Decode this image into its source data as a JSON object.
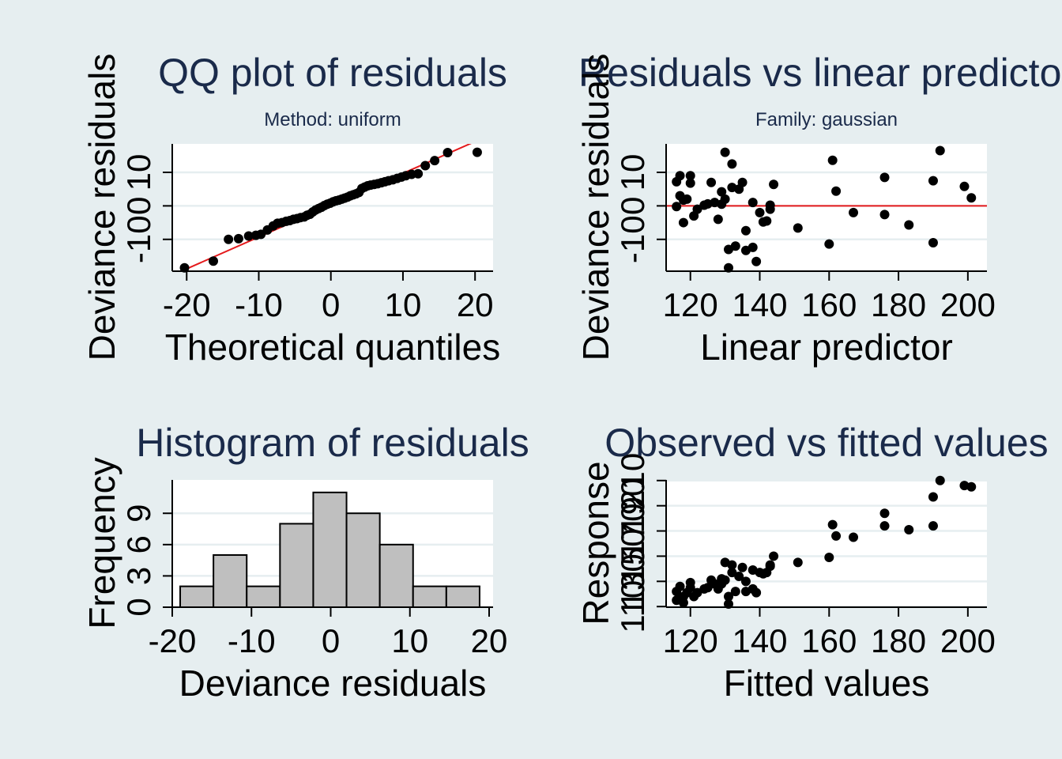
{
  "colors": {
    "background": "#e6eef0",
    "plot_bg": "#ffffff",
    "grid": "#e6eef0",
    "ref_line": "#e41a1c",
    "points": "#000000",
    "bars": "#bfbfbf",
    "title": "#1a2a4a"
  },
  "chart_data": [
    {
      "type": "scatter",
      "title": "QQ plot of residuals",
      "subtitle": "Method: uniform",
      "xlabel": "Theoretical quantiles",
      "ylabel": "Deviance residuals",
      "xlim": [
        -22,
        22.5
      ],
      "ylim": [
        -19.5,
        18.5
      ],
      "xticks": [
        -20,
        -10,
        0,
        10,
        20
      ],
      "yticks": [
        -10,
        0,
        10
      ],
      "xtick_labels": [
        "-20",
        "-10",
        "0",
        "10",
        "20"
      ],
      "ytick_labels": [
        "-10",
        "0",
        "10"
      ],
      "grid": true,
      "refline": {
        "slope": 0.95,
        "intercept": 0.2
      },
      "x": [
        -20.3,
        -16.3,
        -14.2,
        -12.8,
        -11.4,
        -10.4,
        -9.7,
        -8.8,
        -8.0,
        -7.4,
        -6.8,
        -6.2,
        -5.7,
        -5.2,
        -4.7,
        -4.2,
        -3.7,
        -3.3,
        -2.9,
        -2.5,
        -2.1,
        -1.7,
        -1.3,
        -0.9,
        -0.5,
        -0.1,
        0.3,
        0.7,
        1.1,
        1.5,
        1.9,
        2.3,
        2.7,
        3.1,
        3.5,
        3.9,
        4.3,
        4.7,
        5.1,
        5.5,
        6.0,
        6.5,
        7.0,
        7.5,
        8.0,
        8.6,
        9.2,
        9.8,
        10.4,
        11.2,
        12.1,
        13.1,
        14.4,
        16.2,
        20.3
      ],
      "y": [
        -18.5,
        -16.5,
        -10.0,
        -9.8,
        -9.0,
        -8.8,
        -8.5,
        -7.2,
        -6.0,
        -5.2,
        -5.0,
        -4.6,
        -4.4,
        -4.0,
        -3.8,
        -3.5,
        -3.3,
        -2.8,
        -2.5,
        -1.8,
        -1.2,
        -0.8,
        -0.4,
        0.1,
        0.5,
        0.8,
        1.2,
        1.5,
        1.7,
        2.0,
        2.3,
        2.6,
        3.0,
        3.3,
        3.6,
        4.0,
        5.2,
        5.6,
        6.0,
        6.2,
        6.4,
        6.6,
        6.9,
        7.2,
        7.5,
        7.8,
        8.2,
        8.6,
        9.0,
        9.4,
        9.6,
        12.0,
        13.5,
        15.9,
        16.0
      ]
    },
    {
      "type": "scatter",
      "title": "Residuals vs linear predictor",
      "subtitle": "Family: gaussian",
      "xlabel": "Linear predictor",
      "ylabel": "Deviance residuals",
      "xlim": [
        113,
        205.5
      ],
      "ylim": [
        -19.5,
        18.5
      ],
      "xticks": [
        120,
        140,
        160,
        180,
        200
      ],
      "yticks": [
        -10,
        0,
        10
      ],
      "xtick_labels": [
        "120",
        "140",
        "160",
        "180",
        "200"
      ],
      "ytick_labels": [
        "-10",
        "0",
        "10"
      ],
      "grid": true,
      "hline": 0,
      "x": [
        116,
        116,
        117,
        117,
        118,
        118,
        119,
        120,
        120,
        121,
        122,
        124,
        125,
        126,
        127,
        128,
        129,
        129,
        130,
        130,
        131,
        131,
        132,
        132,
        133,
        134,
        135,
        136,
        136,
        138,
        138,
        139,
        140,
        141,
        142,
        143,
        143,
        144,
        151,
        160,
        161,
        162,
        167,
        176,
        176,
        183,
        190,
        190,
        192,
        199,
        201
      ],
      "y": [
        7.2,
        -0.2,
        9.0,
        3.0,
        -5.0,
        1.7,
        2.0,
        9.0,
        6.8,
        -3.0,
        -1.0,
        0.2,
        0.6,
        7.0,
        1.0,
        -4.0,
        4.2,
        0.5,
        16.0,
        2.0,
        -13.0,
        -18.5,
        5.5,
        12.5,
        -12.0,
        5.0,
        7.0,
        -7.4,
        -13.3,
        1.0,
        -12.4,
        -16.6,
        -2.0,
        -4.8,
        -4.5,
        -1.0,
        0.2,
        6.4,
        -6.6,
        -11.4,
        13.6,
        4.4,
        -2.0,
        8.5,
        -2.6,
        -5.7,
        7.5,
        -11.0,
        16.5,
        5.8,
        2.4
      ]
    },
    {
      "type": "bar",
      "title": "Histogram of residuals",
      "xlabel": "Deviance residuals",
      "ylabel": "Frequency",
      "xlim": [
        -20,
        20.5
      ],
      "ylim": [
        0,
        12.2
      ],
      "xticks": [
        -20,
        -10,
        0,
        10,
        20
      ],
      "yticks": [
        0,
        3,
        6,
        9
      ],
      "xtick_labels": [
        "-20",
        "-10",
        "0",
        "10",
        "20"
      ],
      "ytick_labels": [
        "0",
        "3",
        "6",
        "9"
      ],
      "grid": true,
      "bin_edges": [
        -19.0,
        -14.8,
        -10.6,
        -6.4,
        -2.2,
        2.0,
        6.2,
        10.4,
        14.6,
        18.8
      ],
      "values": [
        2,
        5,
        2,
        8,
        11,
        9,
        6,
        2,
        2
      ]
    },
    {
      "type": "scatter",
      "title": "Observed vs fitted values",
      "xlabel": "Fitted values",
      "ylabel": "Response",
      "xlim": [
        113,
        205.5
      ],
      "ylim": [
        109.5,
        210.5
      ],
      "xticks": [
        120,
        140,
        160,
        180,
        200
      ],
      "yticks": [
        110,
        130,
        150,
        170,
        190,
        210
      ],
      "xtick_labels": [
        "120",
        "140",
        "160",
        "180",
        "200"
      ],
      "ytick_labels": [
        "110",
        "130",
        "150",
        "170",
        "190",
        "210"
      ],
      "grid": true,
      "x": [
        116,
        116,
        117,
        117,
        118,
        118,
        119,
        120,
        120,
        121,
        122,
        124,
        125,
        126,
        127,
        128,
        129,
        129,
        130,
        130,
        131,
        131,
        132,
        132,
        133,
        134,
        135,
        136,
        136,
        138,
        138,
        139,
        140,
        141,
        142,
        143,
        143,
        144,
        151,
        160,
        161,
        162,
        167,
        176,
        176,
        183,
        190,
        190,
        192,
        199,
        201
      ],
      "y": [
        122,
        115,
        126,
        117,
        113,
        118,
        121,
        129,
        125,
        118,
        121,
        124,
        125,
        131,
        128,
        124,
        132,
        128,
        145,
        131,
        118,
        112,
        137,
        143,
        122,
        134,
        141,
        130,
        122,
        139,
        124,
        121,
        137,
        136,
        137,
        142,
        143,
        150,
        145,
        149,
        175,
        166,
        165,
        184,
        174,
        171,
        197,
        174,
        210,
        206,
        205
      ]
    }
  ]
}
